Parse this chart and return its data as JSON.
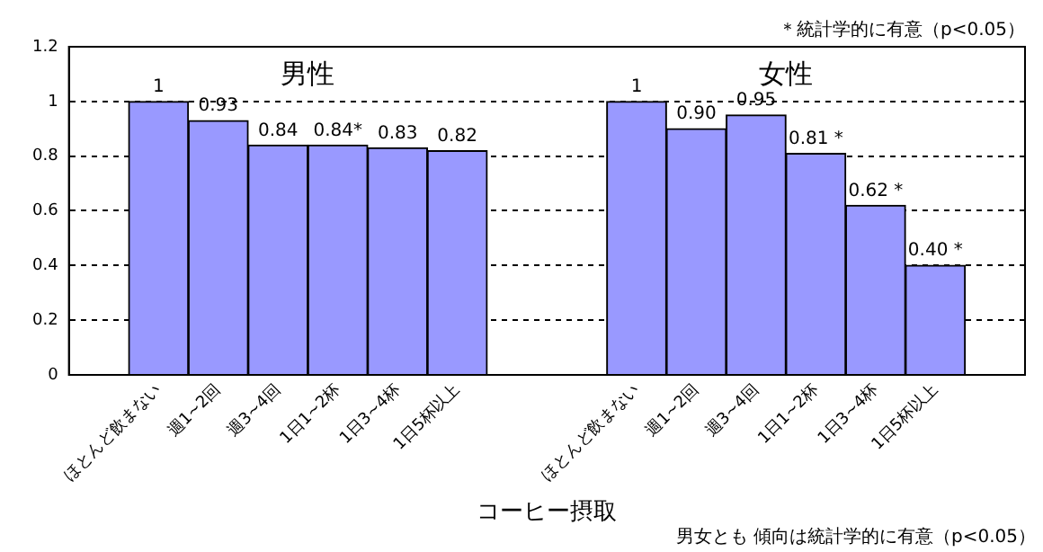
{
  "chart_data": {
    "type": "bar",
    "xlabel": "コーヒー摂取",
    "annotations": [
      "男性",
      "女性",
      "＊統計学的に有意（p<0.05）",
      "男女とも 傾向は統計学的に有意（p<0.05）"
    ],
    "categories": [
      null,
      "ほとんど飲まない",
      "週1~2回",
      "週3~4回",
      "1日1~2杯",
      "1日3~4杯",
      "1日5杯以上",
      null,
      null,
      "ほとんど飲まない",
      "週1~2回",
      "週3~4回",
      "1日1~2杯",
      "1日3~4杯",
      "1日5杯以上",
      null
    ],
    "series": [
      {
        "color": "#9999ff",
        "values": [
          null,
          1,
          0.93,
          0.84,
          0.84,
          0.83,
          0.82,
          null,
          null,
          1,
          0.9,
          0.95,
          0.81,
          0.62,
          0.4,
          null
        ],
        "value_labels": [
          null,
          "1",
          "0.93",
          "0.84",
          "0.84*",
          "0.83",
          "0.82",
          null,
          null,
          "1",
          "0.90",
          "0.95",
          "0.81 *",
          "0.62 *",
          "0.40 *",
          null
        ]
      }
    ],
    "ylim": [
      0,
      1.2
    ],
    "yticks": [
      0,
      0.2,
      0.4,
      0.6,
      0.8,
      1,
      1.2
    ],
    "grid": "y",
    "legend": false
  }
}
